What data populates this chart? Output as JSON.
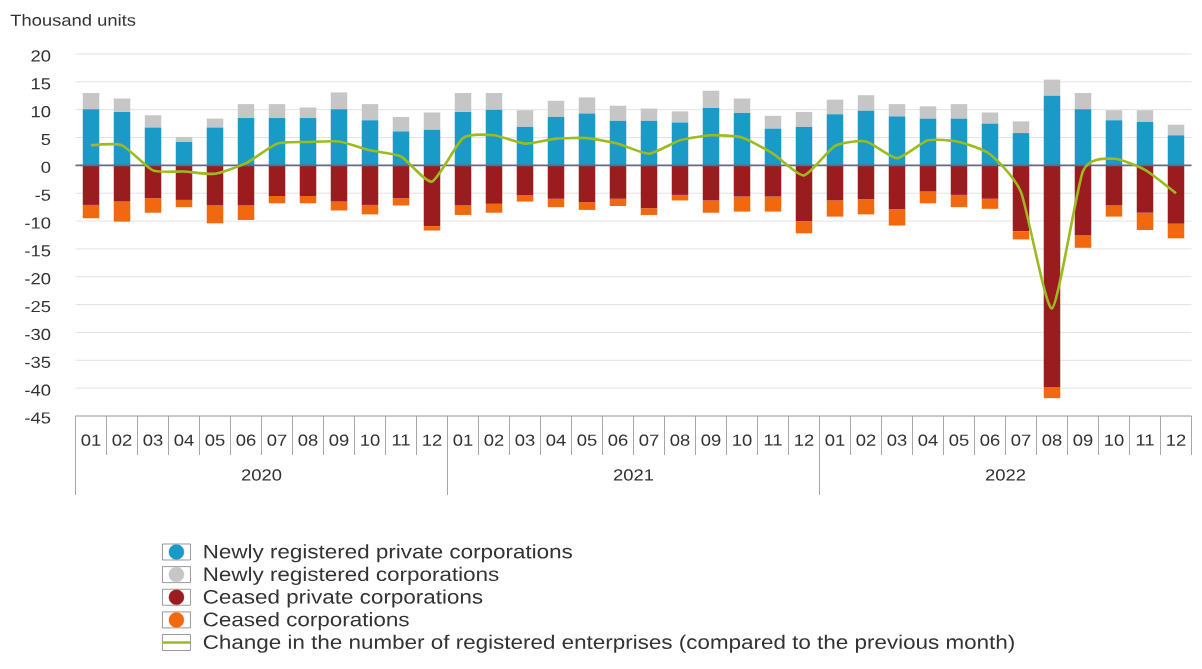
{
  "chart_data": {
    "type": "bar",
    "stacked": true,
    "ylabel": "Thousand units",
    "categories": [
      "01",
      "02",
      "03",
      "04",
      "05",
      "06",
      "07",
      "08",
      "09",
      "10",
      "11",
      "12",
      "01",
      "02",
      "03",
      "04",
      "05",
      "06",
      "07",
      "08",
      "09",
      "10",
      "11",
      "12",
      "01",
      "02",
      "03",
      "04",
      "05",
      "06",
      "07",
      "08",
      "09",
      "10",
      "11",
      "12"
    ],
    "ylim": [
      -45,
      20
    ],
    "yticks": [
      -45,
      -40,
      -35,
      -30,
      -25,
      -20,
      -15,
      -10,
      -5,
      0,
      5,
      10,
      15,
      20
    ],
    "grid": "y",
    "legend": "bottom",
    "series": [
      {
        "name": "Newly registered private corporations",
        "color": "#1a9ac6",
        "values": [
          10.1,
          9.6,
          6.8,
          4.2,
          6.8,
          8.5,
          8.5,
          8.5,
          10.1,
          8.1,
          6.1,
          6.4,
          9.6,
          10.0,
          6.9,
          8.7,
          9.3,
          8.0,
          8.0,
          7.7,
          10.3,
          9.4,
          6.6,
          6.9,
          9.2,
          9.8,
          8.8,
          8.4,
          8.4,
          7.5,
          5.8,
          12.5,
          10.1,
          8.1,
          7.8,
          5.4
        ]
      },
      {
        "name": "Newly registered corporations",
        "color": "#c6c6c6",
        "values": [
          2.9,
          2.4,
          2.2,
          0.9,
          1.6,
          2.5,
          2.5,
          1.9,
          3.0,
          2.9,
          2.6,
          3.1,
          3.4,
          3.0,
          3.0,
          2.9,
          2.9,
          2.7,
          2.2,
          2.0,
          3.1,
          2.6,
          2.3,
          2.7,
          2.6,
          2.8,
          2.2,
          2.2,
          2.6,
          2.0,
          2.1,
          2.9,
          2.9,
          1.8,
          2.1,
          1.9
        ]
      },
      {
        "name": "Ceased private corporations",
        "color": "#9a1c1f",
        "values": [
          -7.1,
          -6.5,
          -5.9,
          -6.2,
          -7.2,
          -7.2,
          -5.5,
          -5.5,
          -6.5,
          -7.1,
          -5.9,
          -10.9,
          -7.2,
          -6.9,
          -5.4,
          -6.0,
          -6.6,
          -6.0,
          -7.7,
          -5.3,
          -6.3,
          -5.6,
          -5.6,
          -10.0,
          -6.3,
          -6.1,
          -7.9,
          -4.7,
          -5.3,
          -6.0,
          -11.8,
          -39.8,
          -12.6,
          -7.2,
          -8.5,
          -10.5
        ]
      },
      {
        "name": "Ceased corporations",
        "color": "#f2680e",
        "values": [
          -2.4,
          -3.6,
          -2.6,
          -1.3,
          -3.2,
          -2.6,
          -1.3,
          -1.3,
          -1.6,
          -1.7,
          -1.3,
          -0.8,
          -1.7,
          -1.6,
          -1.1,
          -1.5,
          -1.4,
          -1.3,
          -1.2,
          -1.0,
          -2.2,
          -2.7,
          -2.7,
          -2.2,
          -2.9,
          -2.7,
          -2.9,
          -2.1,
          -2.2,
          -1.8,
          -1.5,
          -2.0,
          -2.2,
          -2.0,
          -3.1,
          -2.6
        ]
      },
      {
        "name": "Change in the number of registered enterprises (compared to the previous month)",
        "type": "line",
        "color": "#9bbb1e",
        "values": [
          3.6,
          3.6,
          -0.9,
          -1.1,
          -1.5,
          0.4,
          3.9,
          4.2,
          4.3,
          2.7,
          1.6,
          -2.9,
          4.9,
          5.4,
          3.9,
          4.8,
          4.9,
          3.9,
          2.1,
          4.5,
          5.4,
          5.0,
          2.1,
          -1.8,
          3.5,
          4.3,
          1.3,
          4.5,
          4.2,
          2.0,
          -4.8,
          -25.7,
          -1.0,
          1.2,
          -0.8,
          -5.0
        ]
      }
    ],
    "annotations": [
      "2020",
      "2021",
      "2022"
    ]
  }
}
